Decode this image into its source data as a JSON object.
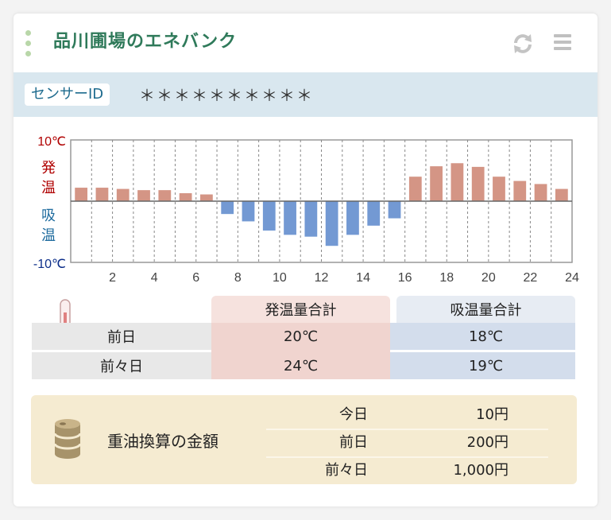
{
  "header": {
    "title": "品川圃場のエネバンク"
  },
  "sensor": {
    "label": "センサーID",
    "value": "＊＊＊＊＊＊＊＊＊＊"
  },
  "chart_data": {
    "type": "bar",
    "y_top_label": "10℃",
    "y_bottom_label": "-10℃",
    "label_gen": [
      "発",
      "温"
    ],
    "label_abs": [
      "吸",
      "温"
    ],
    "ylim": [
      -10,
      10
    ],
    "categories": [
      1,
      2,
      3,
      4,
      5,
      6,
      7,
      8,
      9,
      10,
      11,
      12,
      13,
      14,
      15,
      16,
      17,
      18,
      19,
      20,
      21,
      22,
      23,
      24
    ],
    "x_tick_labels": [
      "2",
      "4",
      "6",
      "8",
      "10",
      "12",
      "14",
      "16",
      "18",
      "20",
      "22",
      "24"
    ],
    "values": [
      2.2,
      2.2,
      2.0,
      1.8,
      1.8,
      1.3,
      1.1,
      -2.1,
      -3.3,
      -4.8,
      -5.5,
      -5.8,
      -7.3,
      -5.5,
      -4.0,
      -2.8,
      4.0,
      5.7,
      6.2,
      5.6,
      4.0,
      3.3,
      2.8,
      2.0
    ],
    "colors": {
      "positive": "#d49585",
      "negative": "#7399d3"
    },
    "grid": true
  },
  "totals": {
    "head_gen": "発温量合計",
    "head_abs": "吸温量合計",
    "rows": [
      {
        "label": "前日",
        "gen": "20℃",
        "abs": "18℃"
      },
      {
        "label": "前々日",
        "gen": "24℃",
        "abs": "19℃"
      }
    ]
  },
  "oil": {
    "title": "重油換算の金額",
    "rows": [
      {
        "label": "今日",
        "value": "10円"
      },
      {
        "label": "前日",
        "value": "200円"
      },
      {
        "label": "前々日",
        "value": "1,000円"
      }
    ]
  }
}
